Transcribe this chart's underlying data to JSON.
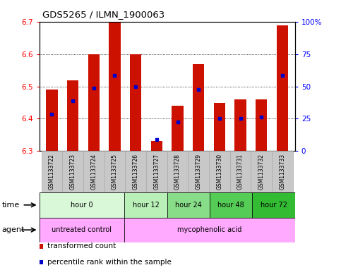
{
  "title": "GDS5265 / ILMN_1900063",
  "samples": [
    "GSM1133722",
    "GSM1133723",
    "GSM1133724",
    "GSM1133725",
    "GSM1133726",
    "GSM1133727",
    "GSM1133728",
    "GSM1133729",
    "GSM1133730",
    "GSM1133731",
    "GSM1133732",
    "GSM1133733"
  ],
  "bar_bottom": 6.3,
  "bar_tops": [
    6.49,
    6.52,
    6.6,
    6.7,
    6.6,
    6.33,
    6.44,
    6.57,
    6.45,
    6.46,
    6.46,
    6.69
  ],
  "percentile_values": [
    6.415,
    6.455,
    6.495,
    6.535,
    6.5,
    6.335,
    6.39,
    6.49,
    6.4,
    6.4,
    6.405,
    6.535
  ],
  "ylim_left": [
    6.3,
    6.7
  ],
  "ylim_right": [
    0,
    100
  ],
  "yticks_left": [
    6.3,
    6.4,
    6.5,
    6.6,
    6.7
  ],
  "yticks_right": [
    0,
    25,
    50,
    75,
    100
  ],
  "ytick_labels_right": [
    "0",
    "25",
    "50",
    "75",
    "100%"
  ],
  "bar_color": "#cc1100",
  "percentile_color": "#0000cc",
  "time_groups": [
    {
      "label": "hour 0",
      "start": 0,
      "end": 4,
      "color": "#d8f8d8"
    },
    {
      "label": "hour 12",
      "start": 4,
      "end": 6,
      "color": "#b8f0b8"
    },
    {
      "label": "hour 24",
      "start": 6,
      "end": 8,
      "color": "#88dd88"
    },
    {
      "label": "hour 48",
      "start": 8,
      "end": 10,
      "color": "#55cc55"
    },
    {
      "label": "hour 72",
      "start": 10,
      "end": 12,
      "color": "#33bb33"
    }
  ],
  "agent_untreated": {
    "label": "untreated control",
    "start": 0,
    "end": 4,
    "color": "#ffaaff"
  },
  "agent_myco": {
    "label": "mycophenolic acid",
    "start": 4,
    "end": 12,
    "color": "#ffaaff"
  },
  "sample_bg_color": "#c8c8c8",
  "sample_border_color": "#aaaaaa",
  "bar_color_red": "#cc1100",
  "percentile_color_blue": "#0000cc"
}
